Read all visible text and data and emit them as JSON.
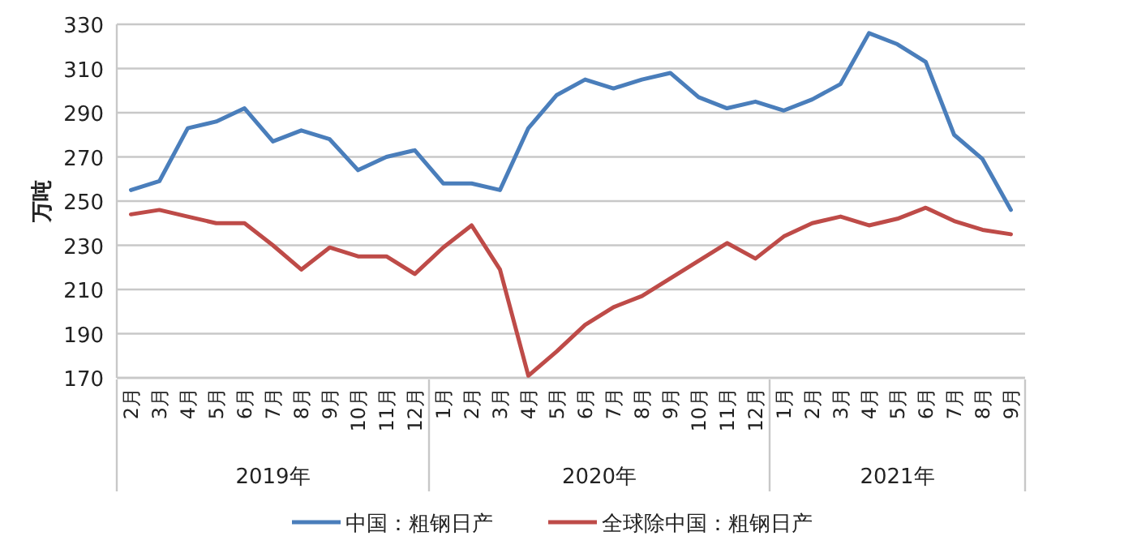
{
  "chart_data": {
    "type": "line",
    "ylabel": "万吨",
    "ylim": [
      170,
      330
    ],
    "yticks": [
      170,
      190,
      210,
      230,
      250,
      270,
      290,
      310,
      330
    ],
    "grid": "y",
    "legend": "bottom",
    "marker": "none",
    "line_style": "solid",
    "categories": [
      "2月",
      "3月",
      "4月",
      "5月",
      "6月",
      "7月",
      "8月",
      "9月",
      "10月",
      "11月",
      "12月",
      "1月",
      "2月",
      "3月",
      "4月",
      "5月",
      "6月",
      "7月",
      "8月",
      "9月",
      "10月",
      "11月",
      "12月",
      "1月",
      "2月",
      "3月",
      "4月",
      "5月",
      "6月",
      "7月",
      "8月",
      "9月"
    ],
    "annotations": [
      "2019年",
      "2020年",
      "2021年"
    ],
    "series": [
      {
        "name": "中国：粗钢日产",
        "color": "#4a7ebb",
        "values": [
          255,
          259,
          283,
          286,
          292,
          277,
          282,
          278,
          264,
          270,
          273,
          258,
          258,
          255,
          283,
          298,
          305,
          301,
          305,
          308,
          297,
          292,
          295,
          291,
          296,
          303,
          326,
          321,
          313,
          280,
          269,
          246
        ]
      },
      {
        "name": "全球除中国：粗钢日产",
        "color": "#be4b48",
        "values": [
          244,
          246,
          243,
          240,
          240,
          230,
          219,
          229,
          225,
          225,
          217,
          229,
          239,
          219,
          171,
          182,
          194,
          202,
          207,
          215,
          223,
          231,
          224,
          234,
          240,
          243,
          239,
          242,
          247,
          241,
          237,
          235
        ]
      }
    ]
  }
}
